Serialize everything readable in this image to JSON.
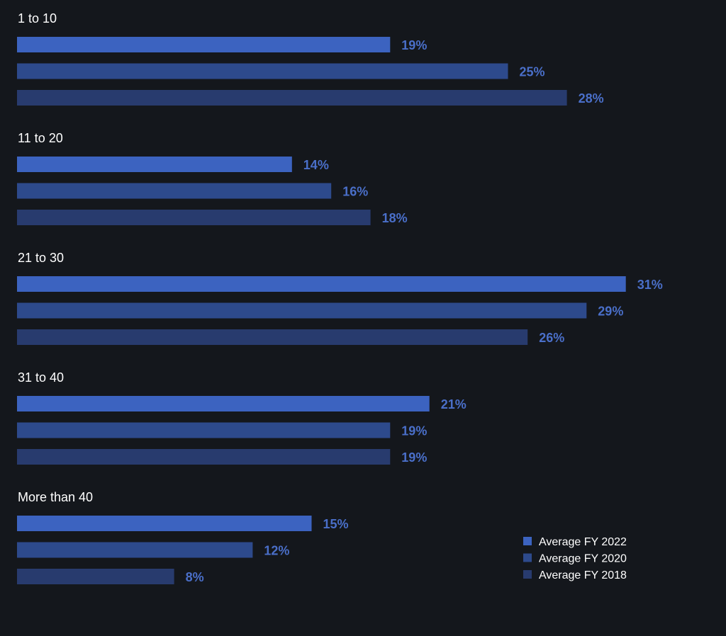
{
  "chart_data": {
    "type": "bar",
    "orientation": "horizontal",
    "categories": [
      "1 to 10",
      "11 to 20",
      "21 to 30",
      "31 to 40",
      "More than 40"
    ],
    "series": [
      {
        "name": "Average FY 2022",
        "values": [
          19,
          14,
          31,
          21,
          15
        ],
        "labels": [
          "19%",
          "14%",
          "31%",
          "21%",
          "15%"
        ],
        "color": "#3c63c0"
      },
      {
        "name": "Average FY 2020",
        "values": [
          25,
          16,
          29,
          19,
          12
        ],
        "labels": [
          "25%",
          "16%",
          "29%",
          "19%",
          "12%"
        ],
        "color": "#2d4a8c"
      },
      {
        "name": "Average FY 2018",
        "values": [
          28,
          18,
          26,
          19,
          8
        ],
        "labels": [
          "28%",
          "18%",
          "26%",
          "19%",
          "8%"
        ],
        "color": "#283b6e"
      }
    ],
    "value_label_color": "#4a6fc9",
    "legend_placement": "bottom-right",
    "grid": false,
    "axis_visible": false,
    "background": "#14171c"
  }
}
